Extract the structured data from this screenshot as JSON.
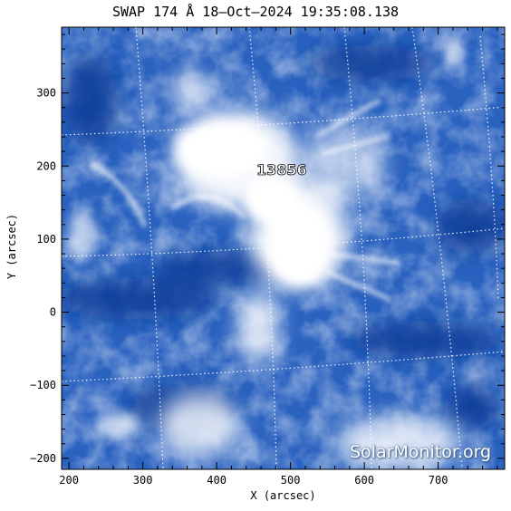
{
  "title": "SWAP 174 Å 18–Oct–2024 19:35:08.138",
  "axes": {
    "xlabel": "X (arcsec)",
    "ylabel": "Y (arcsec)",
    "xticks": [
      "200",
      "300",
      "400",
      "500",
      "600",
      "700"
    ],
    "yticks": [
      "300",
      "200",
      "100",
      "0",
      "−100",
      "−200"
    ],
    "xlim": [
      190,
      790
    ],
    "ylim": [
      -215,
      390
    ]
  },
  "active_region": {
    "number": "13856",
    "x_arcsec": 495,
    "y_arcsec": 195
  },
  "watermark": "SolarMonitor.org",
  "colors": {
    "background": "#0b3f9c",
    "mid": "#2f6fd0",
    "bright": "#ffffff",
    "grid": "#ffffff"
  },
  "image": {
    "kind": "EUV solar corona image, blue colormap",
    "grid": "dotted heliographic grid"
  }
}
